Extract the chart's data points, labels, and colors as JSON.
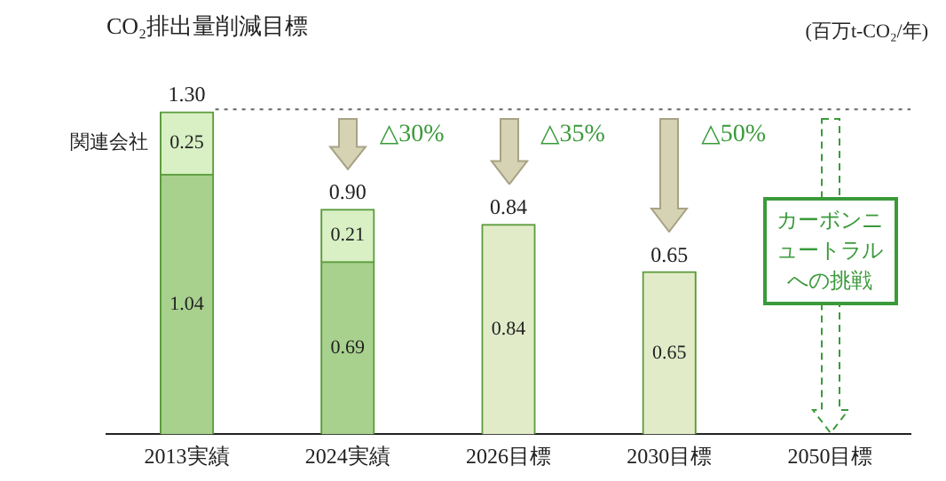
{
  "chart_data": {
    "type": "bar",
    "stacked": true,
    "title": "CO₂排出量削減目標",
    "categories": [
      "2013実績",
      "2024実績",
      "2026目標",
      "2030目標",
      "2050目標"
    ],
    "series": [
      {
        "colors": [
          "#a9d18e",
          "#a9d18e",
          "#e2ebc8",
          "#e2ebc8",
          "#ffffff"
        ],
        "values": [
          1.04,
          0.69,
          0.84,
          0.65,
          null
        ]
      },
      {
        "name": "関連会社",
        "color": "#d8f0c4",
        "values": [
          0.25,
          0.21,
          null,
          null,
          null
        ]
      }
    ],
    "data_labels": true,
    "totals": [
      "1.30",
      "0.90",
      "0.84",
      "0.65",
      null
    ],
    "grid": false,
    "legend": false,
    "ref_lines": [
      {
        "axis": "y",
        "value": 1.3,
        "color": "#666666",
        "line_style": "dotted"
      }
    ],
    "annotations": [
      "(百万t-CO₂/年)",
      "△30%",
      "△35%",
      "△50%",
      "カーボンニュートラルへの挑戦"
    ]
  }
}
